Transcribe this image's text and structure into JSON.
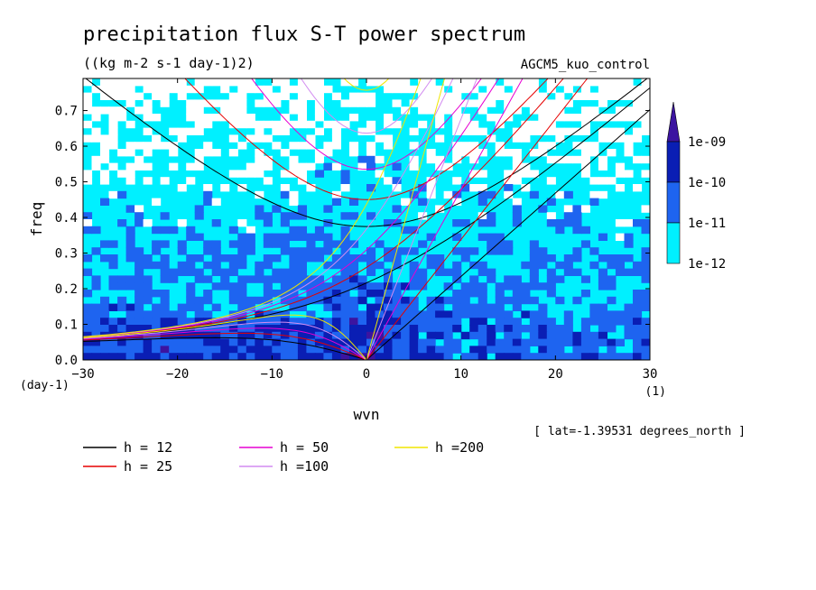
{
  "chart_data": {
    "type": "heatmap",
    "title": "precipitation flux S-T power spectrum",
    "subtitle": "((kg m-2 s-1 day-1)2)",
    "run_label": "AGCM5_kuo_control",
    "xlabel": "wvn",
    "ylabel": "freq",
    "x_unit": "(1)",
    "y_unit": "(day-1)",
    "annotation": "[ lat=-1.39531 degrees_north ]",
    "xlim": [
      -30,
      30
    ],
    "ylim": [
      0,
      0.79
    ],
    "xticks": [
      -30,
      -20,
      -10,
      0,
      10,
      20,
      30
    ],
    "yticks": [
      0.0,
      0.1,
      0.2,
      0.3,
      0.4,
      0.5,
      0.6,
      0.7
    ],
    "ytick_labels": [
      "0.0",
      "0.1",
      "0.2",
      "0.3",
      "0.4",
      "0.5",
      "0.6",
      "0.7"
    ],
    "colorbar": {
      "levels": [
        "1e-12",
        "1e-11",
        "1e-10",
        "1e-09"
      ],
      "colors": [
        "#00f0ff",
        "#1e64f0",
        "#0a1eb4",
        "#3c14a0"
      ],
      "below_color": "#ffffff"
    },
    "series": [
      {
        "name": "h = 12",
        "color": "#000000",
        "h": 12
      },
      {
        "name": "h = 25",
        "color": "#e60000",
        "h": 25
      },
      {
        "name": "h = 50",
        "color": "#e600d2",
        "h": 50
      },
      {
        "name": "h =100",
        "color": "#d28cf0",
        "h": 100
      },
      {
        "name": "h =200",
        "color": "#f0e600",
        "h": 200
      }
    ],
    "grid": false
  }
}
